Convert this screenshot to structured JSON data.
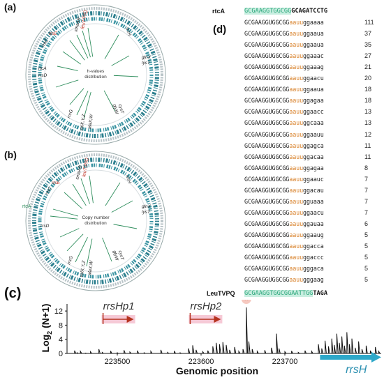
{
  "panels": {
    "a": "(a)",
    "b": "(b)",
    "c": "(c)",
    "d": "(d)"
  },
  "circle_a": {
    "center_label": "h-values distribution",
    "genes": {
      "leu": "leuT/P/Q",
      "sma": "smaAB",
      "rrsH": "rrsH",
      "rrsC": "rrsC",
      "rrsE": "rrsE",
      "rtcA": "rtcA",
      "rrsD": "rrsD",
      "glnX": "glnX",
      "lysT": "lysT",
      "rrsG": "rrsG",
      "valXYZ": "valX,Y,Z",
      "alaXW": "alaX,W",
      "cysT": "cysT",
      "glyW": "glyW"
    }
  },
  "circle_b": {
    "center_label": "Copy number distribution",
    "genes": {
      "leu": "leuT/P/Q",
      "sma": "smaAB",
      "rrsH": "rrsH",
      "rrsC": "rrsC",
      "rrsE": "rrsE",
      "rtcA": "rtcA",
      "rrsD": "rrsD",
      "glnX": "glnX",
      "lysT": "lysT",
      "rrsG": "rrsG",
      "valXYZ": "valX,Y,Z",
      "alaXW": "alaX,W",
      "cysT": "cysT",
      "glyW": "glyW"
    }
  },
  "seq_panel": {
    "rtcA_label": "rtcA",
    "rtcA_seq_hl": "GCGAAGGTGGCGG",
    "rtcA_seq_rest": "GCAGATCCTG",
    "rows": [
      {
        "a": "GCGAAGGUGGCGG",
        "b": "aauu",
        "c": "ggaaaa",
        "n": "111"
      },
      {
        "a": "GCGAAGGUGGCGG",
        "b": "aauu",
        "c": "ggaaua",
        "n": "37"
      },
      {
        "a": "GCGAAGGUGGCGG",
        "b": "aauu",
        "c": "ggaaua",
        "n": "35"
      },
      {
        "a": "GCGAAGGUGGCGG",
        "b": "aauu",
        "c": "ggaaac",
        "n": "27"
      },
      {
        "a": "GCGAAGGUGGCGG",
        "b": "aauu",
        "c": "ggaaag",
        "n": "21"
      },
      {
        "a": "GCGAAGGUGGCGG",
        "b": "aauu",
        "c": "ggaacu",
        "n": "20"
      },
      {
        "a": "GCGAAGGUGGCGG",
        "b": "aauu",
        "c": "ggaaua",
        "n": "18"
      },
      {
        "a": "GCGAAGGUGGCGG",
        "b": "aauu",
        "c": "ggagaa",
        "n": "18"
      },
      {
        "a": "GCGAAGGUGGCGG",
        "b": "aauu",
        "c": "ggaacc",
        "n": "13"
      },
      {
        "a": "GCGAAGGUGGCGG",
        "b": "aauu",
        "c": "ggcaaa",
        "n": "13"
      },
      {
        "a": "GCGAAGGUGGCGG",
        "b": "aauu",
        "c": "ggaauu",
        "n": "12"
      },
      {
        "a": "GCGAAGGUGGCGG",
        "b": "aauu",
        "c": "ggagca",
        "n": "11"
      },
      {
        "a": "GCGAAGGUGGCGG",
        "b": "aauu",
        "c": "ggacaa",
        "n": "11"
      },
      {
        "a": "GCGAAGGUGGCGG",
        "b": "aauu",
        "c": "ggagaa",
        "n": "8"
      },
      {
        "a": "GCGAAGGUGGCGG",
        "b": "aauu",
        "c": "ggaauc",
        "n": "7"
      },
      {
        "a": "GCGAAGGUGGCGG",
        "b": "aauu",
        "c": "ggacau",
        "n": "7"
      },
      {
        "a": "GCGAAGGUGGCGG",
        "b": "aauu",
        "c": "gguaaa",
        "n": "7"
      },
      {
        "a": "GCGAAGGUGGCGG",
        "b": "aauu",
        "c": "ggaacu",
        "n": "7"
      },
      {
        "a": "GCGAAGGUGGCGG",
        "b": "aauu",
        "c": "ggauaa",
        "n": "6"
      },
      {
        "a": "GCGAAGGUGGCGG",
        "b": "aauu",
        "c": "ggaaug",
        "n": "5"
      },
      {
        "a": "GCGAAGGUGGCGG",
        "b": "aauu",
        "c": "ggacca",
        "n": "5"
      },
      {
        "a": "GCGAAGGUGGCGG",
        "b": "aauu",
        "c": "ggaccc",
        "n": "5"
      },
      {
        "a": "GCGAAGGUGGCGG",
        "b": "aauu",
        "c": "gggaca",
        "n": "5"
      },
      {
        "a": "GCGAAGGUGGCGG",
        "b": "aauu",
        "c": "gggaag",
        "n": "5"
      }
    ],
    "leu_label": "LeuTVPQ",
    "leu_seq_hl": "GCGAAGGTGGCGGAATTGG",
    "leu_seq_rest": "TAGA"
  },
  "chart_data": {
    "type": "line",
    "xlabel": "Genomic position",
    "ylabel": "Log2 (N+1)",
    "ylabel_parts": {
      "pre": "Log",
      "sub": "2",
      "post": " (N+1)"
    },
    "xticks": [
      223500,
      223600,
      223700
    ],
    "xtick_labels": [
      "223500",
      "223600",
      "223700"
    ],
    "yticks": [
      0,
      4,
      8,
      12
    ],
    "yticklabels": [
      "0",
      "4",
      "8",
      "12"
    ],
    "xlim": [
      223440,
      223815
    ],
    "ylim": [
      0,
      14
    ],
    "annotations": {
      "promoter1": "rrsHp1",
      "promoter2": "rrsHp2",
      "gene": "rrsH",
      "star": "*"
    },
    "colors": {
      "line": "#111111",
      "arrow": "#b5331f",
      "arrow_bg": "#f6c9d6",
      "gene": "#2ea8c9",
      "star_bg": "#f6c9c0"
    },
    "peaks": [
      {
        "x": 223449,
        "y": 0.8
      },
      {
        "x": 223452,
        "y": 0.2
      },
      {
        "x": 223456,
        "y": 0.6
      },
      {
        "x": 223462,
        "y": 0.1
      },
      {
        "x": 223468,
        "y": 0.5
      },
      {
        "x": 223478,
        "y": 1.2
      },
      {
        "x": 223482,
        "y": 0.3
      },
      {
        "x": 223492,
        "y": 0.7
      },
      {
        "x": 223500,
        "y": 0.2
      },
      {
        "x": 223508,
        "y": 0.9
      },
      {
        "x": 223515,
        "y": 0.4
      },
      {
        "x": 223524,
        "y": 0.8
      },
      {
        "x": 223532,
        "y": 0.2
      },
      {
        "x": 223540,
        "y": 0.6
      },
      {
        "x": 223552,
        "y": 1.0
      },
      {
        "x": 223560,
        "y": 0.3
      },
      {
        "x": 223568,
        "y": 0.7
      },
      {
        "x": 223575,
        "y": 0.2
      },
      {
        "x": 223585,
        "y": 1.4
      },
      {
        "x": 223590,
        "y": 2.3
      },
      {
        "x": 223594,
        "y": 1.0
      },
      {
        "x": 223602,
        "y": 0.5
      },
      {
        "x": 223608,
        "y": 0.8
      },
      {
        "x": 223614,
        "y": 2.0
      },
      {
        "x": 223618,
        "y": 3.0
      },
      {
        "x": 223622,
        "y": 2.6
      },
      {
        "x": 223626,
        "y": 3.2
      },
      {
        "x": 223630,
        "y": 2.4
      },
      {
        "x": 223634,
        "y": 1.0
      },
      {
        "x": 223640,
        "y": 1.8
      },
      {
        "x": 223645,
        "y": 0.6
      },
      {
        "x": 223650,
        "y": 1.2
      },
      {
        "x": 223654,
        "y": 13.0
      },
      {
        "x": 223657,
        "y": 3.4
      },
      {
        "x": 223661,
        "y": 1.2
      },
      {
        "x": 223667,
        "y": 0.6
      },
      {
        "x": 223676,
        "y": 0.9
      },
      {
        "x": 223684,
        "y": 1.6
      },
      {
        "x": 223690,
        "y": 5.6
      },
      {
        "x": 223693,
        "y": 1.4
      },
      {
        "x": 223700,
        "y": 0.5
      },
      {
        "x": 223708,
        "y": 0.7
      },
      {
        "x": 223716,
        "y": 0.3
      },
      {
        "x": 223724,
        "y": 0.8
      },
      {
        "x": 223732,
        "y": 0.6
      },
      {
        "x": 223740,
        "y": 2.6
      },
      {
        "x": 223744,
        "y": 1.4
      },
      {
        "x": 223748,
        "y": 3.6
      },
      {
        "x": 223752,
        "y": 2.0
      },
      {
        "x": 223756,
        "y": 4.2
      },
      {
        "x": 223759,
        "y": 2.4
      },
      {
        "x": 223762,
        "y": 5.6
      },
      {
        "x": 223765,
        "y": 3.0
      },
      {
        "x": 223768,
        "y": 4.8
      },
      {
        "x": 223771,
        "y": 2.2
      },
      {
        "x": 223774,
        "y": 6.0
      },
      {
        "x": 223777,
        "y": 2.6
      },
      {
        "x": 223780,
        "y": 4.2
      },
      {
        "x": 223784,
        "y": 1.6
      },
      {
        "x": 223788,
        "y": 3.4
      },
      {
        "x": 223792,
        "y": 1.2
      },
      {
        "x": 223797,
        "y": 2.2
      },
      {
        "x": 223802,
        "y": 0.8
      },
      {
        "x": 223808,
        "y": 1.8
      },
      {
        "x": 223812,
        "y": 0.6
      }
    ]
  }
}
